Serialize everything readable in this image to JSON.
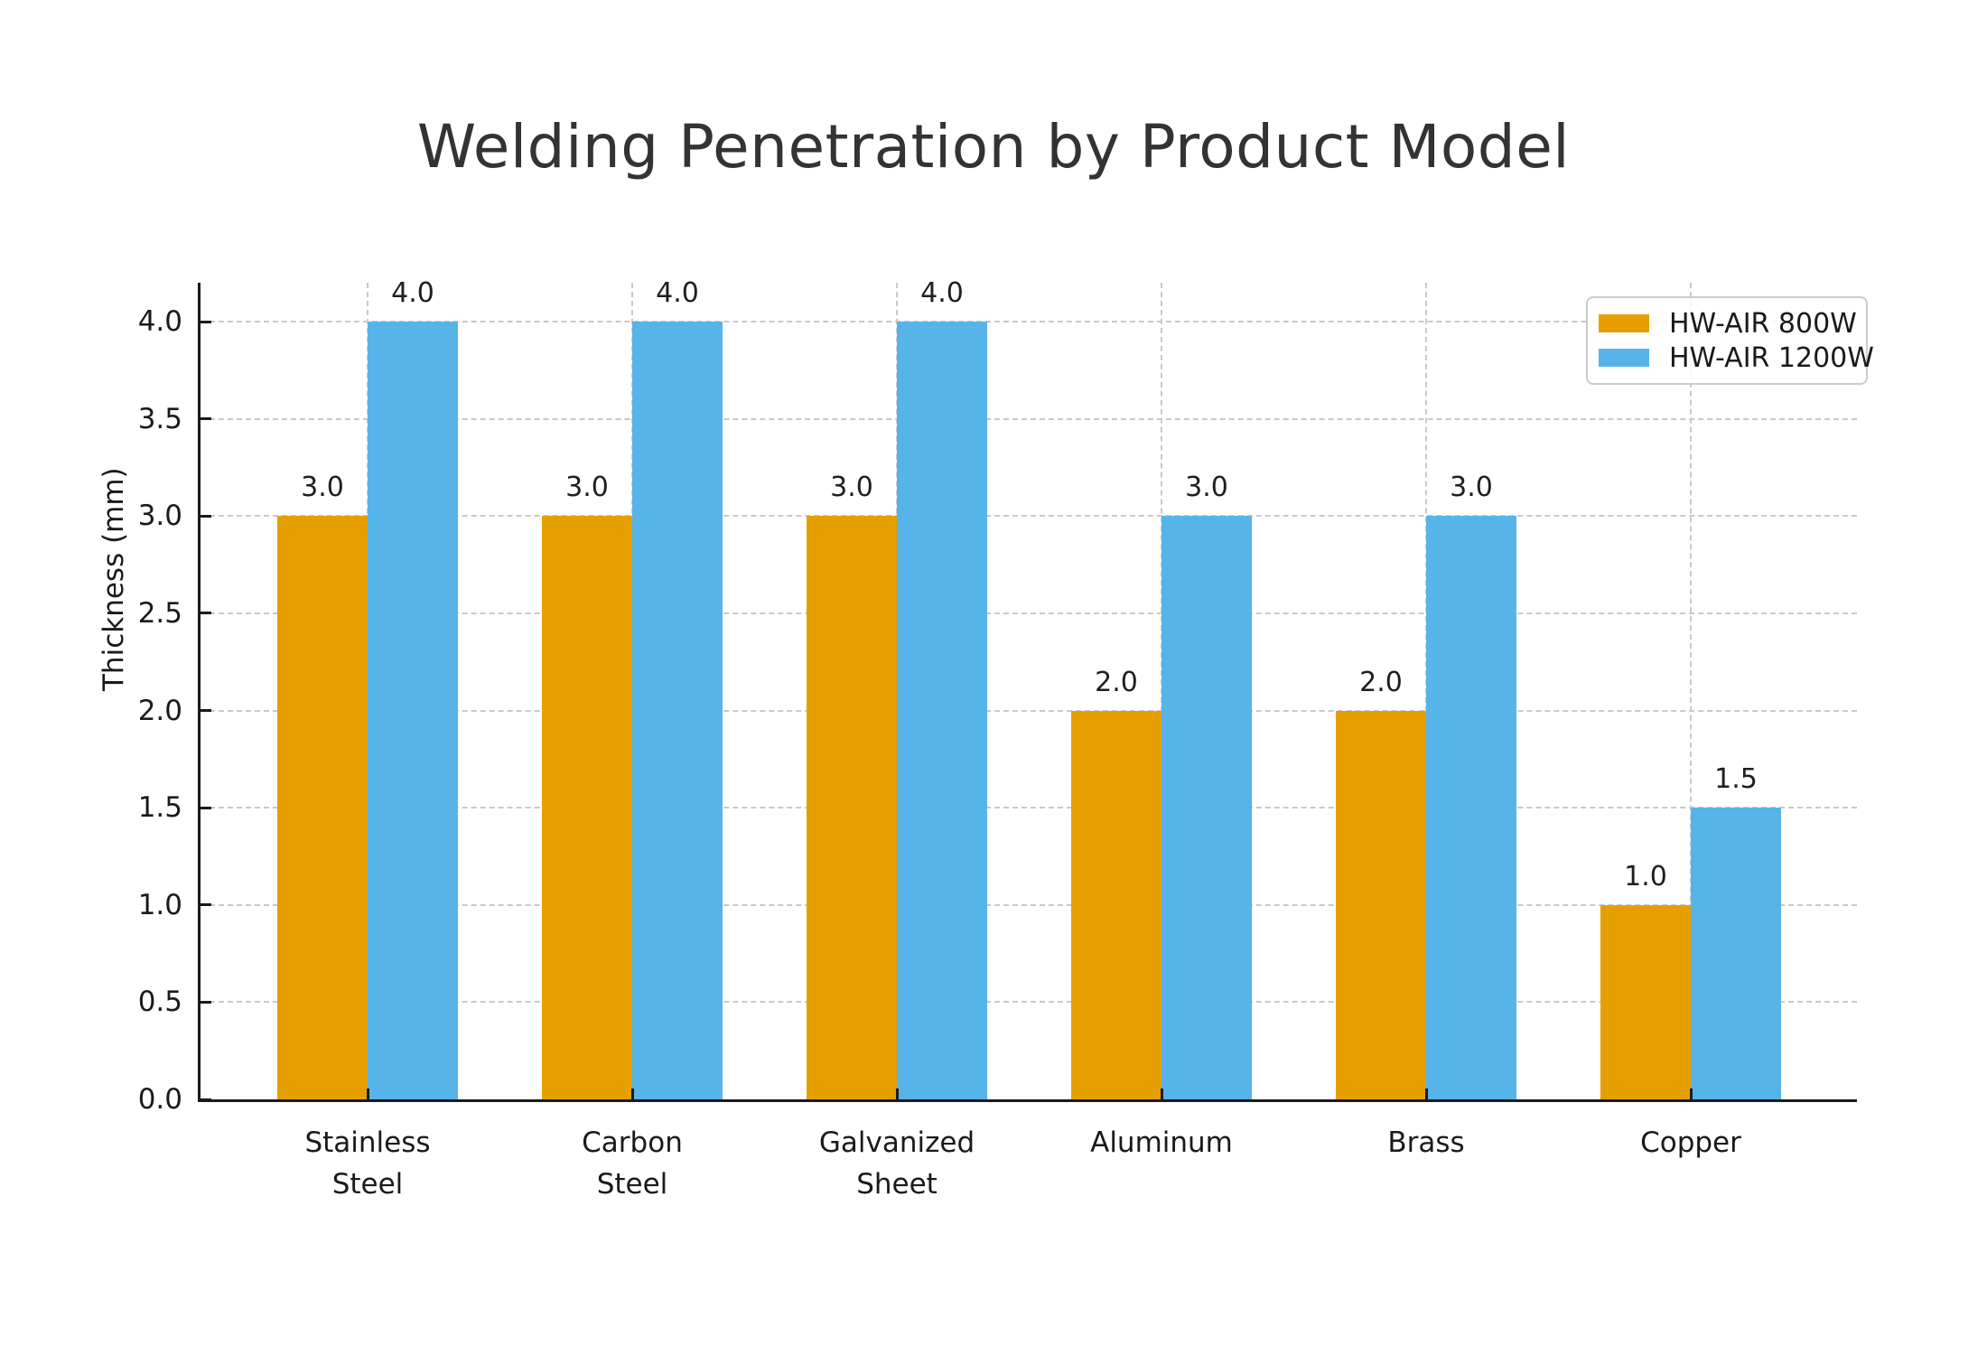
{
  "figure_title": "Welding Penetration by Product Model",
  "colors": {
    "series_800w": "#E69F00",
    "series_1200w": "#56B4E9",
    "axis": "#1a1a1a",
    "grid": "#c9c9c9",
    "title_text": "#333333",
    "legend_border": "#cccccc"
  },
  "chart_data": {
    "type": "bar",
    "title": "Welding Penetration by Product Model",
    "xlabel": "",
    "ylabel": "Thickness (mm)",
    "categories": [
      "Stainless\nSteel",
      "Carbon\nSteel",
      "Galvanized\nSheet",
      "Aluminum",
      "Brass",
      "Copper"
    ],
    "series": [
      {
        "name": "HW-AIR 800W",
        "color": "#E69F00",
        "values": [
          3.0,
          3.0,
          3.0,
          2.0,
          2.0,
          1.0
        ]
      },
      {
        "name": "HW-AIR 1200W",
        "color": "#56B4E9",
        "values": [
          4.0,
          4.0,
          4.0,
          3.0,
          3.0,
          1.5
        ]
      }
    ],
    "bar_value_labels": [
      [
        "3.0",
        "3.0",
        "3.0",
        "2.0",
        "2.0",
        "1.0"
      ],
      [
        "4.0",
        "4.0",
        "4.0",
        "3.0",
        "3.0",
        "1.5"
      ]
    ],
    "ylim": [
      0,
      4.2
    ],
    "yticks": [
      0.0,
      0.5,
      1.0,
      1.5,
      2.0,
      2.5,
      3.0,
      3.5,
      4.0
    ],
    "grid": {
      "horizontal": true,
      "vertical": true,
      "style": "dashed"
    },
    "legend_position": "upper right",
    "legend_entries": [
      "HW-AIR 800W",
      "HW-AIR 1200W"
    ]
  }
}
